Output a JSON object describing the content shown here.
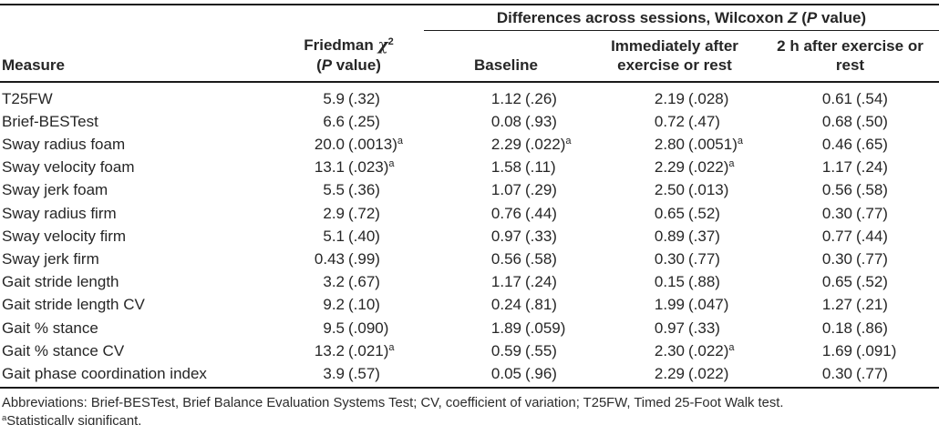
{
  "table": {
    "sig_marker": "a",
    "spanner": {
      "pre": "Differences across sessions, Wilcoxon ",
      "z": "Z",
      "mid": " (",
      "p": "P",
      "post": " value)"
    },
    "columns": {
      "measure": "Measure",
      "friedman_line1_text": "Friedman ",
      "friedman_chi": "χ",
      "friedman_chi_sup": "2",
      "friedman_line2_open": "(",
      "friedman_line2_p": "P",
      "friedman_line2_rest": " value)",
      "baseline": "Baseline",
      "immediate": "Immediately after exercise or rest",
      "after2h": "2 h after exercise or rest"
    },
    "rows": [
      {
        "measure": "T25FW",
        "friedman": {
          "stat": "5.9",
          "p": "(.32)",
          "sig": false
        },
        "baseline": {
          "stat": "1.12",
          "p": "(.26)",
          "sig": false
        },
        "immediate": {
          "stat": "2.19",
          "p": "(.028)",
          "sig": false
        },
        "after2h": {
          "stat": "0.61",
          "p": "(.54)",
          "sig": false
        }
      },
      {
        "measure": "Brief-BESTest",
        "friedman": {
          "stat": "6.6",
          "p": "(.25)",
          "sig": false
        },
        "baseline": {
          "stat": "0.08",
          "p": "(.93)",
          "sig": false
        },
        "immediate": {
          "stat": "0.72",
          "p": "(.47)",
          "sig": false
        },
        "after2h": {
          "stat": "0.68",
          "p": "(.50)",
          "sig": false
        }
      },
      {
        "measure": "Sway radius foam",
        "friedman": {
          "stat": "20.0",
          "p": "(.0013)",
          "sig": true
        },
        "baseline": {
          "stat": "2.29",
          "p": "(.022)",
          "sig": true
        },
        "immediate": {
          "stat": "2.80",
          "p": "(.0051)",
          "sig": true
        },
        "after2h": {
          "stat": "0.46",
          "p": "(.65)",
          "sig": false
        }
      },
      {
        "measure": "Sway velocity foam",
        "friedman": {
          "stat": "13.1",
          "p": "(.023)",
          "sig": true
        },
        "baseline": {
          "stat": "1.58",
          "p": "(.11)",
          "sig": false
        },
        "immediate": {
          "stat": "2.29",
          "p": "(.022)",
          "sig": true
        },
        "after2h": {
          "stat": "1.17",
          "p": "(.24)",
          "sig": false
        }
      },
      {
        "measure": "Sway jerk foam",
        "friedman": {
          "stat": "5.5",
          "p": "(.36)",
          "sig": false
        },
        "baseline": {
          "stat": "1.07",
          "p": "(.29)",
          "sig": false
        },
        "immediate": {
          "stat": "2.50",
          "p": "(.013)",
          "sig": false
        },
        "after2h": {
          "stat": "0.56",
          "p": "(.58)",
          "sig": false
        }
      },
      {
        "measure": "Sway radius firm",
        "friedman": {
          "stat": "2.9",
          "p": "(.72)",
          "sig": false
        },
        "baseline": {
          "stat": "0.76",
          "p": "(.44)",
          "sig": false
        },
        "immediate": {
          "stat": "0.65",
          "p": "(.52)",
          "sig": false
        },
        "after2h": {
          "stat": "0.30",
          "p": "(.77)",
          "sig": false
        }
      },
      {
        "measure": "Sway velocity firm",
        "friedman": {
          "stat": "5.1",
          "p": "(.40)",
          "sig": false
        },
        "baseline": {
          "stat": "0.97",
          "p": "(.33)",
          "sig": false
        },
        "immediate": {
          "stat": "0.89",
          "p": "(.37)",
          "sig": false
        },
        "after2h": {
          "stat": "0.77",
          "p": "(.44)",
          "sig": false
        }
      },
      {
        "measure": "Sway jerk firm",
        "friedman": {
          "stat": "0.43",
          "p": "(.99)",
          "sig": false
        },
        "baseline": {
          "stat": "0.56",
          "p": "(.58)",
          "sig": false
        },
        "immediate": {
          "stat": "0.30",
          "p": "(.77)",
          "sig": false
        },
        "after2h": {
          "stat": "0.30",
          "p": "(.77)",
          "sig": false
        }
      },
      {
        "measure": "Gait stride length",
        "friedman": {
          "stat": "3.2",
          "p": "(.67)",
          "sig": false
        },
        "baseline": {
          "stat": "1.17",
          "p": "(.24)",
          "sig": false
        },
        "immediate": {
          "stat": "0.15",
          "p": "(.88)",
          "sig": false
        },
        "after2h": {
          "stat": "0.65",
          "p": "(.52)",
          "sig": false
        }
      },
      {
        "measure": "Gait stride length CV",
        "friedman": {
          "stat": "9.2",
          "p": "(.10)",
          "sig": false
        },
        "baseline": {
          "stat": "0.24",
          "p": "(.81)",
          "sig": false
        },
        "immediate": {
          "stat": "1.99",
          "p": "(.047)",
          "sig": false
        },
        "after2h": {
          "stat": "1.27",
          "p": "(.21)",
          "sig": false
        }
      },
      {
        "measure": "Gait % stance",
        "friedman": {
          "stat": "9.5",
          "p": "(.090)",
          "sig": false
        },
        "baseline": {
          "stat": "1.89",
          "p": "(.059)",
          "sig": false
        },
        "immediate": {
          "stat": "0.97",
          "p": "(.33)",
          "sig": false
        },
        "after2h": {
          "stat": "0.18",
          "p": "(.86)",
          "sig": false
        }
      },
      {
        "measure": "Gait % stance CV",
        "friedman": {
          "stat": "13.2",
          "p": "(.021)",
          "sig": true
        },
        "baseline": {
          "stat": "0.59",
          "p": "(.55)",
          "sig": false
        },
        "immediate": {
          "stat": "2.30",
          "p": "(.022)",
          "sig": true
        },
        "after2h": {
          "stat": "1.69",
          "p": "(.091)",
          "sig": false
        }
      },
      {
        "measure": "Gait phase coordination index",
        "friedman": {
          "stat": "3.9",
          "p": "(.57)",
          "sig": false
        },
        "baseline": {
          "stat": "0.05",
          "p": "(.96)",
          "sig": false
        },
        "immediate": {
          "stat": "2.29",
          "p": "(.022)",
          "sig": false
        },
        "after2h": {
          "stat": "0.30",
          "p": "(.77)",
          "sig": false
        }
      }
    ]
  },
  "footnotes": {
    "abbreviations": "Abbreviations: Brief-BESTest, Brief Balance Evaluation Systems Test; CV, coefficient of variation; T25FW, Timed 25-Foot Walk test.",
    "sig_marker": "a",
    "sig_text": "Statistically significant."
  }
}
